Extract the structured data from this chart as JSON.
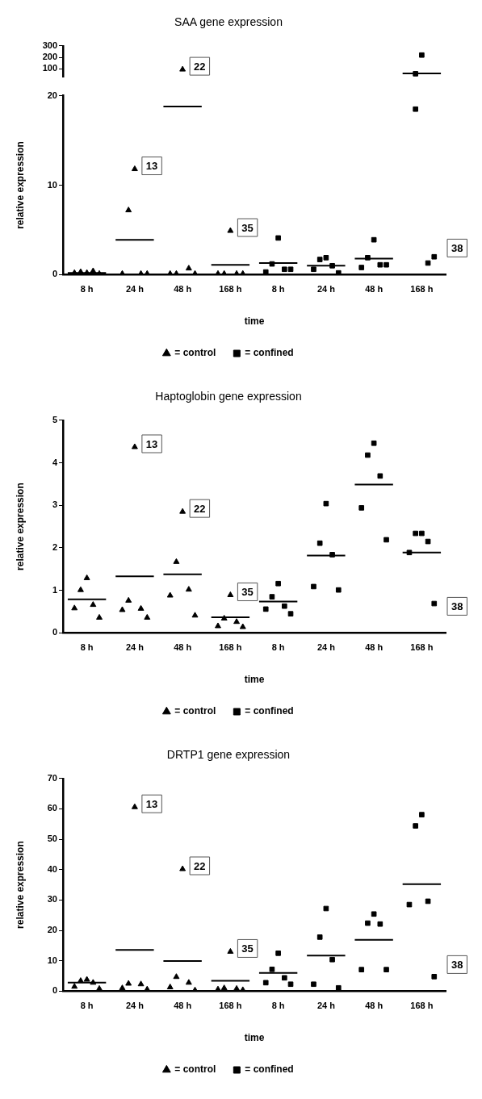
{
  "chart_data": [
    {
      "type": "scatter",
      "title": "SAA gene expression",
      "tick_labels": "y",
      "categories": [
        "8 h",
        "24 h",
        "48 h",
        "168 h",
        "8 h",
        "24 h",
        "48 h",
        "168 h"
      ],
      "ylim": [
        30,
        300
      ],
      "yticks": [
        100,
        200,
        300
      ],
      "series": [
        {
          "color": "#000000",
          "marker": "triangle",
          "values": [
            null,
            null,
            95,
            null,
            null,
            null,
            null,
            null
          ]
        },
        {
          "color": "#000000",
          "marker": "square",
          "values": [
            null,
            null,
            null,
            null,
            null,
            null,
            null,
            220
          ]
        },
        {
          "color": "#000000",
          "marker": "square",
          "values": [
            null,
            null,
            null,
            null,
            null,
            null,
            null,
            58
          ]
        },
        {
          "type": "bar",
          "color": "#000000",
          "base": [
            null,
            null,
            null,
            null,
            null,
            null,
            null,
            60
          ],
          "values": [
            null,
            null,
            null,
            null,
            null,
            null,
            null,
            0
          ]
        }
      ],
      "annotations": [
        {
          "text": "22",
          "x": "48 h",
          "y": 95
        }
      ]
    },
    {
      "type": "scatter",
      "xlabel": "time",
      "ylabel": "relative expression",
      "legend": "bottom",
      "categories": [
        "8 h",
        "24 h",
        "48 h",
        "168 h",
        "8 h",
        "24 h",
        "48 h",
        "168 h"
      ],
      "ylim": [
        0,
        20
      ],
      "yticks": [
        0,
        10,
        20
      ],
      "series": [
        {
          "name": "= control",
          "color": "#000000",
          "marker": "triangle",
          "values": [
            0.2,
            11.8,
            null,
            4.9,
            null,
            null,
            null,
            null
          ]
        },
        {
          "color": "#000000",
          "marker": "triangle",
          "values": [
            0.3,
            7.2,
            0.1,
            0.1,
            null,
            null,
            null,
            null
          ]
        },
        {
          "color": "#000000",
          "marker": "triangle",
          "values": [
            0.4,
            0.1,
            0.7,
            0.1,
            null,
            null,
            null,
            null
          ]
        },
        {
          "color": "#000000",
          "marker": "triangle",
          "values": [
            0.2,
            0.1,
            0.1,
            0.1,
            null,
            null,
            null,
            null
          ]
        },
        {
          "color": "#000000",
          "marker": "triangle",
          "values": [
            0.1,
            0.1,
            0.1,
            0.1,
            null,
            null,
            null,
            null
          ]
        },
        {
          "name": "= confined",
          "color": "#000000",
          "marker": "square",
          "values": [
            null,
            null,
            null,
            null,
            4.1,
            1.9,
            3.9,
            null
          ]
        },
        {
          "color": "#000000",
          "marker": "square",
          "values": [
            null,
            null,
            null,
            null,
            1.2,
            1.7,
            1.9,
            18.5
          ]
        },
        {
          "color": "#000000",
          "marker": "square",
          "values": [
            null,
            null,
            null,
            null,
            0.6,
            1.0,
            1.1,
            1.3
          ]
        },
        {
          "color": "#000000",
          "marker": "square",
          "values": [
            null,
            null,
            null,
            null,
            0.3,
            0.6,
            0.8,
            null
          ]
        },
        {
          "color": "#000000",
          "marker": "square",
          "values": [
            null,
            null,
            null,
            null,
            0.6,
            0.2,
            1.1,
            2.0
          ]
        },
        {
          "type": "bar",
          "color": "#000000",
          "base": [
            0.2,
            3.9,
            18.8,
            1.1,
            1.3,
            1.0,
            1.8,
            null
          ],
          "values": [
            0,
            0,
            0,
            0,
            0,
            0,
            0,
            null
          ]
        }
      ],
      "annotations": [
        {
          "text": "13",
          "x": "24 h",
          "y": 11.8
        },
        {
          "text": "35",
          "x": "168 h",
          "y": 4.9
        },
        "38"
      ]
    },
    {
      "type": "scatter",
      "title": "Haptoglobin gene expression",
      "xlabel": "time",
      "ylabel": "relative expression",
      "legend": "bottom",
      "categories": [
        "8 h",
        "24 h",
        "48 h",
        "168 h",
        "8 h",
        "24 h",
        "48 h",
        "168 h"
      ],
      "ylim": [
        0,
        5
      ],
      "yticks": [
        0,
        1,
        2,
        3,
        4,
        5
      ],
      "series": [
        {
          "name": "= control",
          "color": "#000000",
          "marker": "triangle",
          "values": [
            1.29,
            4.37,
            2.85,
            0.89,
            null,
            null,
            null,
            null
          ]
        },
        {
          "color": "#000000",
          "marker": "triangle",
          "values": [
            1.01,
            0.76,
            1.67,
            0.34,
            null,
            null,
            null,
            null
          ]
        },
        {
          "color": "#000000",
          "marker": "triangle",
          "values": [
            0.66,
            0.57,
            1.02,
            0.26,
            null,
            null,
            null,
            null
          ]
        },
        {
          "color": "#000000",
          "marker": "triangle",
          "values": [
            0.58,
            0.54,
            0.88,
            0.16,
            null,
            null,
            null,
            null
          ]
        },
        {
          "color": "#000000",
          "marker": "triangle",
          "values": [
            0.36,
            0.36,
            0.41,
            0.14,
            null,
            null,
            null,
            null
          ]
        },
        {
          "name": "= confined",
          "color": "#000000",
          "marker": "square",
          "values": [
            null,
            null,
            null,
            null,
            1.16,
            3.04,
            4.46,
            2.34
          ]
        },
        {
          "color": "#000000",
          "marker": "square",
          "values": [
            null,
            null,
            null,
            null,
            0.85,
            2.11,
            4.18,
            2.34
          ]
        },
        {
          "color": "#000000",
          "marker": "square",
          "values": [
            null,
            null,
            null,
            null,
            0.63,
            1.84,
            3.69,
            2.15
          ]
        },
        {
          "color": "#000000",
          "marker": "square",
          "values": [
            null,
            null,
            null,
            null,
            0.56,
            1.09,
            2.94,
            1.89
          ]
        },
        {
          "color": "#000000",
          "marker": "square",
          "values": [
            null,
            null,
            null,
            null,
            0.45,
            1.01,
            2.19,
            0.69
          ]
        },
        {
          "type": "bar",
          "color": "#000000",
          "base": [
            0.79,
            1.33,
            1.38,
            0.37,
            0.74,
            1.82,
            3.49,
            1.89
          ],
          "values": [
            0,
            0,
            0,
            0,
            0,
            0,
            0,
            0
          ]
        }
      ],
      "annotations": [
        {
          "text": "13",
          "x": "24 h",
          "y": 4.37
        },
        {
          "text": "22",
          "x": "48 h",
          "y": 2.85
        },
        {
          "text": "35",
          "x": "168 h",
          "y": 0.89
        },
        "38"
      ]
    },
    {
      "type": "scatter",
      "title": "DRTP1 gene expression",
      "xlabel": "time",
      "ylabel": "relative expression",
      "legend": "bottom",
      "categories": [
        "8 h",
        "24 h",
        "48 h",
        "168 h",
        "8 h",
        "24 h",
        "48 h",
        "168 h"
      ],
      "ylim": [
        0,
        70
      ],
      "yticks": [
        0,
        10,
        20,
        30,
        40,
        50,
        60,
        70
      ],
      "series": [
        {
          "name": "= control",
          "color": "#000000",
          "marker": "triangle",
          "values": [
            3.8,
            60.6,
            40.2,
            13.0,
            null,
            null,
            null,
            null
          ]
        },
        {
          "color": "#000000",
          "marker": "triangle",
          "values": [
            3.4,
            2.5,
            4.7,
            1.0,
            null,
            null,
            null,
            null
          ]
        },
        {
          "color": "#000000",
          "marker": "triangle",
          "values": [
            2.8,
            2.3,
            2.8,
            0.8,
            null,
            null,
            null,
            null
          ]
        },
        {
          "color": "#000000",
          "marker": "triangle",
          "values": [
            1.5,
            1.0,
            1.3,
            0.6,
            null,
            null,
            null,
            null
          ]
        },
        {
          "color": "#000000",
          "marker": "triangle",
          "values": [
            0.8,
            0.6,
            0.3,
            0.4,
            null,
            null,
            null,
            null
          ]
        },
        {
          "name": "= confined",
          "color": "#000000",
          "marker": "square",
          "values": [
            null,
            null,
            null,
            null,
            12.5,
            27.2,
            25.4,
            58.1
          ]
        },
        {
          "color": "#000000",
          "marker": "square",
          "values": [
            null,
            null,
            null,
            null,
            7.2,
            17.8,
            22.4,
            54.4
          ]
        },
        {
          "color": "#000000",
          "marker": "square",
          "values": [
            null,
            null,
            null,
            null,
            4.4,
            10.4,
            22.1,
            29.6
          ]
        },
        {
          "color": "#000000",
          "marker": "square",
          "values": [
            null,
            null,
            null,
            null,
            2.8,
            2.3,
            7.1,
            28.5
          ]
        },
        {
          "color": "#000000",
          "marker": "square",
          "values": [
            null,
            null,
            null,
            null,
            2.3,
            1.1,
            7.1,
            4.8
          ]
        },
        {
          "type": "bar",
          "color": "#000000",
          "base": [
            2.8,
            13.6,
            9.9,
            3.4,
            6.0,
            11.7,
            16.9,
            35.2
          ],
          "values": [
            0,
            0,
            0,
            0,
            0,
            0,
            0,
            0
          ]
        }
      ],
      "annotations": [
        {
          "text": "13",
          "x": "24 h",
          "y": 60.6
        },
        {
          "text": "22",
          "x": "48 h",
          "y": 40.2
        },
        {
          "text": "35",
          "x": "168 h",
          "y": 13.0
        },
        "38"
      ]
    }
  ]
}
